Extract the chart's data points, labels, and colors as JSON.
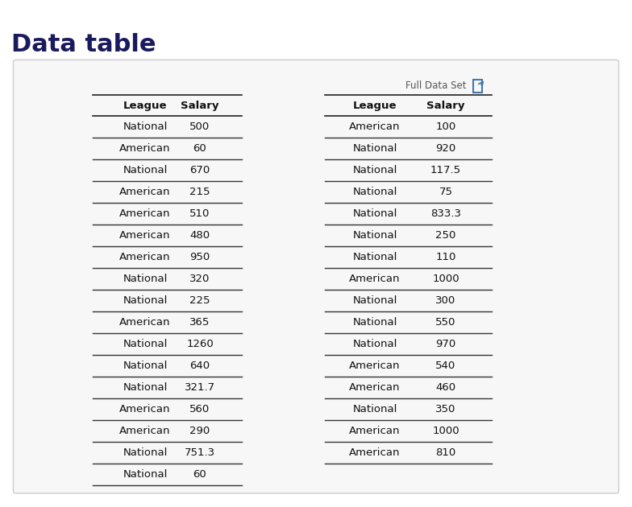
{
  "title": "Data table",
  "title_fontsize": 22,
  "title_color": "#1a1a5e",
  "full_data_set_label": "Full Data Set",
  "background_color": "#ffffff",
  "box_facecolor": "#f7f7f7",
  "box_edgecolor": "#cccccc",
  "header_line_color": "#222222",
  "row_line_color": "#333333",
  "text_color": "#111111",
  "left_table": {
    "headers": [
      "League",
      "Salary"
    ],
    "rows": [
      [
        "National",
        "500"
      ],
      [
        "American",
        "60"
      ],
      [
        "National",
        "670"
      ],
      [
        "American",
        "215"
      ],
      [
        "American",
        "510"
      ],
      [
        "American",
        "480"
      ],
      [
        "American",
        "950"
      ],
      [
        "National",
        "320"
      ],
      [
        "National",
        "225"
      ],
      [
        "American",
        "365"
      ],
      [
        "National",
        "1260"
      ],
      [
        "National",
        "640"
      ],
      [
        "National",
        "321.7"
      ],
      [
        "American",
        "560"
      ],
      [
        "American",
        "290"
      ],
      [
        "National",
        "751.3"
      ],
      [
        "National",
        "60"
      ]
    ]
  },
  "right_table": {
    "headers": [
      "League",
      "Salary"
    ],
    "rows": [
      [
        "American",
        "100"
      ],
      [
        "National",
        "920"
      ],
      [
        "National",
        "117.5"
      ],
      [
        "National",
        "75"
      ],
      [
        "National",
        "833.3"
      ],
      [
        "National",
        "250"
      ],
      [
        "National",
        "110"
      ],
      [
        "American",
        "1000"
      ],
      [
        "National",
        "300"
      ],
      [
        "National",
        "550"
      ],
      [
        "National",
        "970"
      ],
      [
        "American",
        "540"
      ],
      [
        "American",
        "460"
      ],
      [
        "National",
        "350"
      ],
      [
        "American",
        "1000"
      ],
      [
        "American",
        "810"
      ]
    ]
  }
}
